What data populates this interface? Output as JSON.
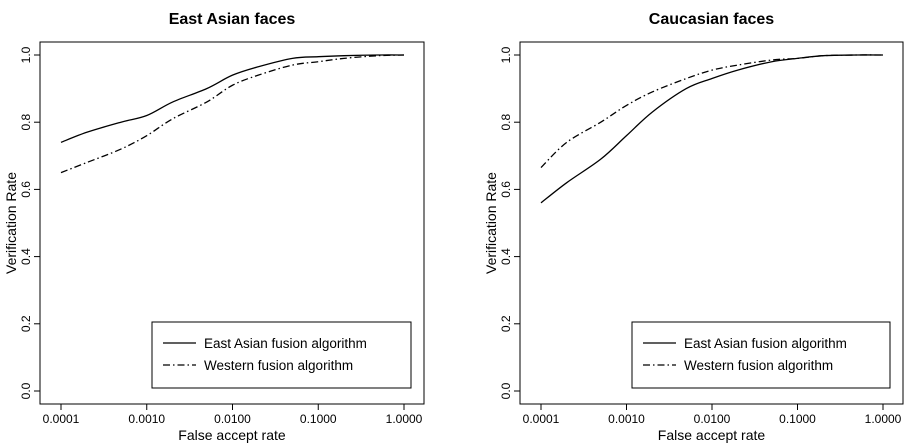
{
  "chart_data": [
    {
      "type": "line",
      "title": "East Asian faces",
      "xlabel": "False accept rate",
      "ylabel": "Verification Rate",
      "x_scale": "log",
      "xlim": [
        0.0001,
        1.0
      ],
      "ylim": [
        0.0,
        1.0
      ],
      "x_ticks": [
        "0.0001",
        "0.0010",
        "0.0100",
        "0.1000",
        "1.0000"
      ],
      "y_ticks": [
        "0.0",
        "0.2",
        "0.4",
        "0.6",
        "0.8",
        "1.0"
      ],
      "grid": false,
      "legend_position": "bottom-right",
      "series": [
        {
          "name": "East Asian fusion algorithm",
          "line_style": "solid",
          "x": [
            0.0001,
            0.0002,
            0.0005,
            0.001,
            0.002,
            0.005,
            0.01,
            0.02,
            0.05,
            0.1,
            0.2,
            0.5,
            1.0
          ],
          "y": [
            0.74,
            0.77,
            0.8,
            0.82,
            0.86,
            0.9,
            0.94,
            0.965,
            0.99,
            0.995,
            0.998,
            1.0,
            1.0
          ]
        },
        {
          "name": "Western fusion algorithm",
          "line_style": "dashdot",
          "x": [
            0.0001,
            0.0002,
            0.0005,
            0.001,
            0.002,
            0.005,
            0.01,
            0.02,
            0.05,
            0.1,
            0.2,
            0.5,
            1.0
          ],
          "y": [
            0.65,
            0.68,
            0.72,
            0.76,
            0.81,
            0.86,
            0.91,
            0.94,
            0.97,
            0.98,
            0.99,
            0.998,
            1.0
          ]
        }
      ]
    },
    {
      "type": "line",
      "title": "Caucasian faces",
      "xlabel": "False accept rate",
      "ylabel": "Verification Rate",
      "x_scale": "log",
      "xlim": [
        0.0001,
        1.0
      ],
      "ylim": [
        0.0,
        1.0
      ],
      "x_ticks": [
        "0.0001",
        "0.0010",
        "0.0100",
        "0.1000",
        "1.0000"
      ],
      "y_ticks": [
        "0.0",
        "0.2",
        "0.4",
        "0.6",
        "0.8",
        "1.0"
      ],
      "grid": false,
      "legend_position": "bottom-right",
      "series": [
        {
          "name": "East Asian fusion algorithm",
          "line_style": "solid",
          "x": [
            0.0001,
            0.0002,
            0.0005,
            0.001,
            0.002,
            0.005,
            0.01,
            0.02,
            0.05,
            0.1,
            0.2,
            0.5,
            1.0
          ],
          "y": [
            0.56,
            0.62,
            0.69,
            0.76,
            0.83,
            0.9,
            0.93,
            0.955,
            0.98,
            0.99,
            0.998,
            1.0,
            1.0
          ]
        },
        {
          "name": "Western fusion algorithm",
          "line_style": "dashdot",
          "x": [
            0.0001,
            0.0002,
            0.0005,
            0.001,
            0.002,
            0.005,
            0.01,
            0.02,
            0.05,
            0.1,
            0.2,
            0.5,
            1.0
          ],
          "y": [
            0.665,
            0.74,
            0.8,
            0.85,
            0.89,
            0.93,
            0.955,
            0.97,
            0.985,
            0.99,
            0.998,
            1.0,
            1.0
          ]
        }
      ]
    }
  ]
}
